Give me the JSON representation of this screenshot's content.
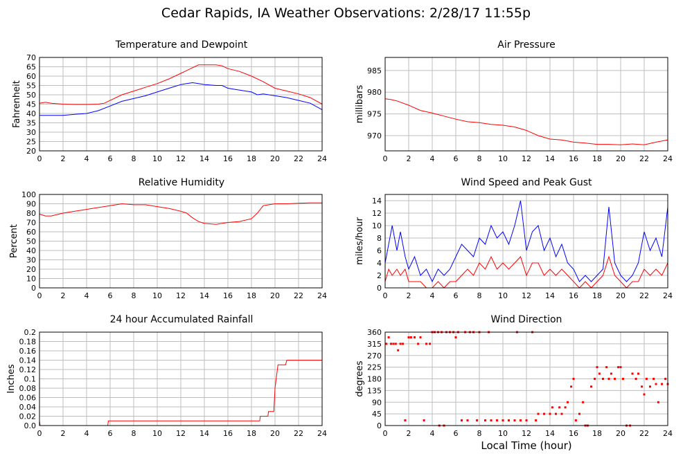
{
  "page_title": "Cedar Rapids, IA Weather Observations: 2/28/17 11:55p",
  "chart_data": [
    {
      "id": "temperature",
      "type": "line",
      "title": "Temperature and Dewpoint",
      "xlabel": "",
      "ylabel": "Fahrenheit",
      "xlim": [
        0,
        24
      ],
      "ylim": [
        20,
        70
      ],
      "xticks": [
        0,
        2,
        4,
        6,
        8,
        10,
        12,
        14,
        16,
        18,
        20,
        22,
        24
      ],
      "yticks": [
        20,
        25,
        30,
        35,
        40,
        45,
        50,
        55,
        60,
        65,
        70
      ],
      "grid": true,
      "series": [
        {
          "color": "#ff0000",
          "x": [
            0,
            0.5,
            1,
            2,
            3,
            4,
            5,
            5.5,
            6,
            7,
            8,
            9,
            10,
            11,
            12,
            12.5,
            13,
            13.5,
            14,
            15,
            15.5,
            16,
            17,
            18,
            19,
            20,
            21,
            22,
            23,
            24
          ],
          "y": [
            45.5,
            46,
            45.5,
            45,
            44.8,
            44.8,
            45,
            45.5,
            47,
            50,
            52,
            54,
            56,
            58.5,
            61.5,
            63,
            64.5,
            66,
            66,
            66,
            65.5,
            64,
            62.5,
            60,
            57,
            53.5,
            52,
            50.5,
            48.5,
            45
          ]
        },
        {
          "color": "#0000ff",
          "x": [
            0,
            1,
            2,
            3,
            4,
            5,
            6,
            7,
            8,
            9,
            10,
            11,
            12,
            12.5,
            13,
            13.5,
            14,
            15,
            15.5,
            16,
            17,
            18,
            18.5,
            19,
            20,
            21,
            22,
            23,
            24
          ],
          "y": [
            39,
            39,
            39,
            39.5,
            40,
            41.5,
            44,
            46.5,
            48,
            49.5,
            51.5,
            53.5,
            55.5,
            56,
            56.5,
            56,
            55.5,
            55,
            55,
            53.5,
            52.5,
            51.5,
            50,
            50.5,
            49.5,
            48.5,
            47,
            45.5,
            42
          ]
        }
      ]
    },
    {
      "id": "pressure",
      "type": "line",
      "title": "Air Pressure",
      "xlabel": "",
      "ylabel": "millibars",
      "xlim": [
        0,
        24
      ],
      "ylim": [
        966.5,
        988
      ],
      "xticks": [
        0,
        2,
        4,
        6,
        8,
        10,
        12,
        14,
        16,
        18,
        20,
        22,
        24
      ],
      "yticks": [
        970,
        975,
        980,
        985
      ],
      "grid": true,
      "series": [
        {
          "color": "#ff0000",
          "x": [
            0,
            0.5,
            1,
            2,
            3,
            4,
            5,
            6,
            7,
            8,
            9,
            10,
            11,
            12,
            13,
            14,
            15,
            16,
            17,
            18,
            19,
            20,
            21,
            22,
            23,
            24
          ],
          "y": [
            978.5,
            978.3,
            978,
            977,
            975.8,
            975.2,
            974.5,
            973.8,
            973.2,
            973,
            972.6,
            972.4,
            972,
            971.2,
            970,
            969.2,
            969,
            968.5,
            968.3,
            968,
            968,
            967.9,
            968.1,
            967.9,
            968.5,
            969
          ]
        }
      ]
    },
    {
      "id": "humidity",
      "type": "line",
      "title": "Relative Humidity",
      "xlabel": "",
      "ylabel": "Percent",
      "xlim": [
        0,
        24
      ],
      "ylim": [
        0,
        100
      ],
      "xticks": [
        0,
        2,
        4,
        6,
        8,
        10,
        12,
        14,
        16,
        18,
        20,
        22,
        24
      ],
      "yticks": [
        0,
        10,
        20,
        30,
        40,
        50,
        60,
        70,
        80,
        90,
        100
      ],
      "grid": true,
      "series": [
        {
          "color": "#ff0000",
          "x": [
            0,
            0.5,
            1,
            2,
            3,
            4,
            5,
            6,
            7,
            8,
            9,
            10,
            11,
            12,
            12.5,
            13,
            13.5,
            14,
            15,
            16,
            17,
            18,
            18.5,
            19,
            20,
            21,
            22,
            23,
            24
          ],
          "y": [
            79,
            77,
            77,
            80,
            82,
            84,
            86,
            88,
            90,
            89,
            89,
            87,
            85,
            82,
            80,
            75,
            71,
            69,
            68,
            70,
            71,
            74,
            80,
            88,
            90,
            90,
            90.5,
            91,
            91
          ]
        }
      ]
    },
    {
      "id": "wind",
      "type": "line",
      "title": "Wind Speed and Peak Gust",
      "xlabel": "",
      "ylabel": "miles/hour",
      "xlim": [
        0,
        24
      ],
      "ylim": [
        0,
        15
      ],
      "xticks": [
        0,
        2,
        4,
        6,
        8,
        10,
        12,
        14,
        16,
        18,
        20,
        22,
        24
      ],
      "yticks": [
        0,
        2,
        4,
        6,
        8,
        10,
        12,
        14
      ],
      "grid": true,
      "series": [
        {
          "color": "#0000ff",
          "x": [
            0,
            0.3,
            0.6,
            1,
            1.3,
            1.7,
            2,
            2.5,
            3,
            3.5,
            4,
            4.5,
            5,
            5.5,
            6,
            6.5,
            7,
            7.5,
            8,
            8.5,
            9,
            9.5,
            10,
            10.5,
            11,
            11.5,
            12,
            12.5,
            13,
            13.5,
            14,
            14.5,
            15,
            15.5,
            16,
            16.5,
            17,
            17.5,
            18,
            18.5,
            19,
            19.5,
            20,
            20.5,
            21,
            21.5,
            22,
            22.5,
            23,
            23.5,
            24
          ],
          "y": [
            4,
            7,
            10,
            6,
            9,
            5,
            3,
            5,
            2,
            3,
            1,
            3,
            2,
            3,
            5,
            7,
            6,
            5,
            8,
            7,
            10,
            8,
            9,
            7,
            10,
            14,
            6,
            9,
            10,
            6,
            8,
            5,
            7,
            4,
            3,
            1,
            2,
            1,
            2,
            3,
            13,
            4,
            2,
            1,
            2,
            4,
            9,
            6,
            8,
            5,
            13
          ]
        },
        {
          "color": "#ff0000",
          "x": [
            0,
            0.3,
            0.6,
            1,
            1.3,
            1.7,
            2,
            2.5,
            3,
            3.5,
            4,
            4.5,
            5,
            5.5,
            6,
            6.5,
            7,
            7.5,
            8,
            8.5,
            9,
            9.5,
            10,
            10.5,
            11,
            11.5,
            12,
            12.5,
            13,
            13.5,
            14,
            14.5,
            15,
            15.5,
            16,
            16.5,
            17,
            17.5,
            18,
            18.5,
            19,
            19.5,
            20,
            20.5,
            21,
            21.5,
            22,
            22.5,
            23,
            23.5,
            24
          ],
          "y": [
            1,
            3,
            2,
            3,
            2,
            3,
            1,
            1,
            1,
            0,
            0,
            1,
            0,
            1,
            1,
            2,
            3,
            2,
            4,
            3,
            5,
            3,
            4,
            3,
            4,
            5,
            2,
            4,
            4,
            2,
            3,
            2,
            3,
            2,
            1,
            0,
            1,
            0,
            1,
            2,
            5,
            2,
            1,
            0,
            1,
            1,
            3,
            2,
            3,
            2,
            4
          ]
        }
      ]
    },
    {
      "id": "rainfall",
      "type": "line",
      "title": "24 hour Accumulated Rainfall",
      "xlabel": "",
      "ylabel": "Inches",
      "xlim": [
        0,
        24
      ],
      "ylim": [
        0,
        0.2
      ],
      "xticks": [
        0,
        2,
        4,
        6,
        8,
        10,
        12,
        14,
        16,
        18,
        20,
        22,
        24
      ],
      "yticks": [
        "0.0",
        "0.02",
        "0.04",
        "0.06",
        "0.08",
        "0.1",
        "0.12",
        "0.14",
        "0.16",
        "0.18",
        "0.2"
      ],
      "grid": true,
      "series": [
        {
          "color": "#ff0000",
          "x": [
            0,
            0.05,
            0.1,
            5.8,
            5.85,
            18.7,
            18.75,
            19.4,
            19.45,
            19.9,
            20.0,
            20.2,
            20.25,
            20.9,
            21.0,
            24
          ],
          "y": [
            0.01,
            0,
            0,
            0,
            0.01,
            0.01,
            0.02,
            0.02,
            0.03,
            0.03,
            0.08,
            0.12,
            0.13,
            0.13,
            0.14,
            0.14
          ]
        }
      ]
    },
    {
      "id": "direction",
      "type": "scatter",
      "title": "Wind Direction",
      "xlabel": "Local Time (hour)",
      "ylabel": "degrees",
      "xlim": [
        0,
        24
      ],
      "ylim": [
        0,
        360
      ],
      "xticks": [
        0,
        2,
        4,
        6,
        8,
        10,
        12,
        14,
        16,
        18,
        20,
        22,
        24
      ],
      "yticks": [
        0,
        45,
        90,
        135,
        180,
        225,
        270,
        315,
        360
      ],
      "grid": true,
      "series": [
        {
          "color": "#ff0000",
          "points": [
            [
              0.1,
              315
            ],
            [
              0.3,
              340
            ],
            [
              0.5,
              315
            ],
            [
              0.7,
              315
            ],
            [
              0.9,
              315
            ],
            [
              1.1,
              290
            ],
            [
              1.3,
              315
            ],
            [
              1.5,
              315
            ],
            [
              1.7,
              20
            ],
            [
              2.0,
              340
            ],
            [
              2.2,
              340
            ],
            [
              2.5,
              340
            ],
            [
              2.8,
              315
            ],
            [
              3.0,
              340
            ],
            [
              3.3,
              20
            ],
            [
              3.5,
              315
            ],
            [
              3.8,
              315
            ],
            [
              4.0,
              360
            ],
            [
              4.2,
              360
            ],
            [
              4.5,
              360
            ],
            [
              4.6,
              0
            ],
            [
              4.8,
              360
            ],
            [
              5.0,
              0
            ],
            [
              5.2,
              360
            ],
            [
              5.5,
              360
            ],
            [
              5.8,
              360
            ],
            [
              6.0,
              340
            ],
            [
              6.2,
              360
            ],
            [
              6.5,
              20
            ],
            [
              6.8,
              360
            ],
            [
              7.0,
              20
            ],
            [
              7.2,
              360
            ],
            [
              7.5,
              360
            ],
            [
              7.8,
              20
            ],
            [
              8.0,
              360
            ],
            [
              8.5,
              20
            ],
            [
              8.8,
              360
            ],
            [
              9.0,
              20
            ],
            [
              9.5,
              20
            ],
            [
              10.0,
              20
            ],
            [
              10.5,
              20
            ],
            [
              11.0,
              20
            ],
            [
              11.2,
              360
            ],
            [
              11.5,
              20
            ],
            [
              12.0,
              20
            ],
            [
              12.5,
              360
            ],
            [
              12.8,
              20
            ],
            [
              13.0,
              45
            ],
            [
              13.5,
              45
            ],
            [
              14.0,
              45
            ],
            [
              14.2,
              70
            ],
            [
              14.5,
              45
            ],
            [
              14.8,
              70
            ],
            [
              15.0,
              45
            ],
            [
              15.3,
              70
            ],
            [
              15.5,
              90
            ],
            [
              15.8,
              150
            ],
            [
              16.0,
              180
            ],
            [
              16.2,
              20
            ],
            [
              16.5,
              45
            ],
            [
              16.8,
              90
            ],
            [
              17.0,
              0
            ],
            [
              17.2,
              0
            ],
            [
              17.5,
              150
            ],
            [
              17.8,
              180
            ],
            [
              18.0,
              225
            ],
            [
              18.2,
              200
            ],
            [
              18.5,
              180
            ],
            [
              18.8,
              225
            ],
            [
              19.0,
              180
            ],
            [
              19.2,
              200
            ],
            [
              19.5,
              180
            ],
            [
              19.8,
              225
            ],
            [
              20.0,
              225
            ],
            [
              20.2,
              180
            ],
            [
              20.5,
              0
            ],
            [
              20.8,
              0
            ],
            [
              21.0,
              200
            ],
            [
              21.3,
              180
            ],
            [
              21.5,
              200
            ],
            [
              21.8,
              150
            ],
            [
              22.0,
              120
            ],
            [
              22.2,
              180
            ],
            [
              22.5,
              150
            ],
            [
              22.8,
              180
            ],
            [
              23.0,
              160
            ],
            [
              23.2,
              90
            ],
            [
              23.5,
              160
            ],
            [
              23.8,
              180
            ],
            [
              24.0,
              160
            ]
          ]
        }
      ]
    }
  ]
}
